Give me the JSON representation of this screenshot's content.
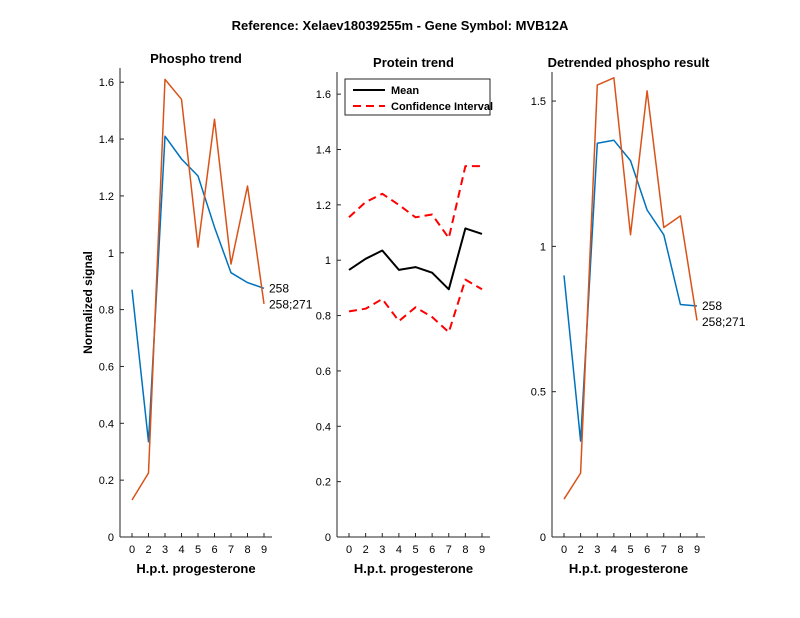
{
  "figure": {
    "suptitle": "Reference:  Xelaev18039255m - Gene Symbol:  MVB12A",
    "colors": {
      "blue": "#0072bd",
      "orange": "#d95319",
      "black": "#000000",
      "red": "#ff0000"
    }
  },
  "chart_data": [
    {
      "id": "phospho",
      "type": "line",
      "title": "Phospho trend",
      "xlabel": "H.p.t. progesterone",
      "ylabel": "Normalized signal",
      "x": [
        0,
        2,
        3,
        4,
        5,
        6,
        7,
        8,
        9
      ],
      "xticks": [
        "0",
        "2",
        "3",
        "4",
        "5",
        "6",
        "7",
        "8",
        "9"
      ],
      "ylim": [
        0,
        1.65
      ],
      "yticks": [
        "0",
        "0.2",
        "0.4",
        "0.6",
        "0.8",
        "1",
        "1.2",
        "1.4",
        "1.6"
      ],
      "ytick_values": [
        0,
        0.2,
        0.4,
        0.6,
        0.8,
        1.0,
        1.2,
        1.4,
        1.6
      ],
      "series": [
        {
          "name": "258",
          "color": "#0072bd",
          "values": [
            0.87,
            0.335,
            1.41,
            1.33,
            1.27,
            1.09,
            0.93,
            0.895,
            0.875
          ]
        },
        {
          "name": "258;271",
          "color": "#d95319",
          "values": [
            0.13,
            0.225,
            1.61,
            1.54,
            1.02,
            1.47,
            0.96,
            1.235,
            0.82
          ]
        }
      ]
    },
    {
      "id": "protein",
      "type": "line",
      "title": "Protein trend",
      "xlabel": "H.p.t. progesterone",
      "ylabel": "",
      "x": [
        0,
        2,
        3,
        4,
        5,
        6,
        7,
        8,
        9
      ],
      "xticks": [
        "0",
        "2",
        "3",
        "4",
        "5",
        "6",
        "7",
        "8",
        "9"
      ],
      "ylim": [
        0,
        1.68
      ],
      "yticks": [
        "0",
        "0.2",
        "0.4",
        "0.6",
        "0.8",
        "1",
        "1.2",
        "1.4",
        "1.6"
      ],
      "ytick_values": [
        0,
        0.2,
        0.4,
        0.6,
        0.8,
        1.0,
        1.2,
        1.4,
        1.6
      ],
      "legend": {
        "position": "top-left",
        "entries": [
          "Mean",
          "Confidence Interval"
        ]
      },
      "series": [
        {
          "name": "Mean",
          "color": "#000000",
          "style": "solid",
          "values": [
            0.965,
            1.005,
            1.035,
            0.965,
            0.975,
            0.955,
            0.895,
            1.115,
            1.095
          ]
        },
        {
          "name": "Confidence Interval (upper)",
          "color": "#ff0000",
          "style": "dashed",
          "values": [
            1.155,
            1.21,
            1.24,
            1.2,
            1.155,
            1.165,
            1.08,
            1.34,
            1.34
          ]
        },
        {
          "name": "Confidence Interval (lower)",
          "color": "#ff0000",
          "style": "dashed",
          "values": [
            0.815,
            0.825,
            0.86,
            0.78,
            0.83,
            0.795,
            0.74,
            0.93,
            0.895
          ]
        }
      ]
    },
    {
      "id": "detrended",
      "type": "line",
      "title": "Detrended phospho result",
      "xlabel": "H.p.t. progesterone",
      "ylabel": "",
      "x": [
        0,
        2,
        3,
        4,
        5,
        6,
        7,
        8,
        9
      ],
      "xticks": [
        "0",
        "2",
        "3",
        "4",
        "5",
        "6",
        "7",
        "8",
        "9"
      ],
      "ylim": [
        0,
        1.6
      ],
      "yticks": [
        "0",
        "0.5",
        "1",
        "1.5"
      ],
      "ytick_values": [
        0,
        0.5,
        1.0,
        1.5
      ],
      "series": [
        {
          "name": "258",
          "color": "#0072bd",
          "values": [
            0.9,
            0.33,
            1.355,
            1.365,
            1.295,
            1.125,
            1.04,
            0.8,
            0.795
          ]
        },
        {
          "name": "258;271",
          "color": "#d95319",
          "values": [
            0.13,
            0.22,
            1.555,
            1.58,
            1.04,
            1.535,
            1.065,
            1.105,
            0.745
          ]
        }
      ]
    }
  ]
}
